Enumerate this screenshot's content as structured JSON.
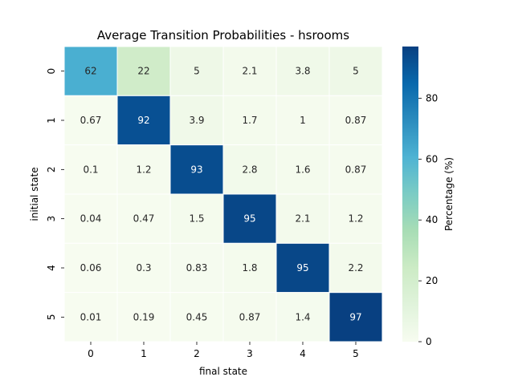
{
  "chart_data": {
    "type": "heatmap",
    "title": "Average Transition Probabilities - hsrooms",
    "xlabel": "final state",
    "ylabel": "initial state",
    "x_categories": [
      "0",
      "1",
      "2",
      "3",
      "4",
      "5"
    ],
    "y_categories": [
      "0",
      "1",
      "2",
      "3",
      "4",
      "5"
    ],
    "values": [
      [
        62,
        22,
        5,
        2.1,
        3.8,
        5
      ],
      [
        0.67,
        92,
        3.9,
        1.7,
        1,
        0.87
      ],
      [
        0.1,
        1.2,
        93,
        2.8,
        1.6,
        0.87
      ],
      [
        0.04,
        0.47,
        1.5,
        95,
        2.1,
        1.2
      ],
      [
        0.06,
        0.3,
        0.83,
        1.8,
        95,
        2.2
      ],
      [
        0.01,
        0.19,
        0.45,
        0.87,
        1.4,
        97
      ]
    ],
    "colorbar": {
      "label": "Percentage (%)",
      "range": [
        0,
        97
      ],
      "ticks": [
        0,
        20,
        40,
        60,
        80
      ],
      "colormap": "GnBu"
    }
  }
}
